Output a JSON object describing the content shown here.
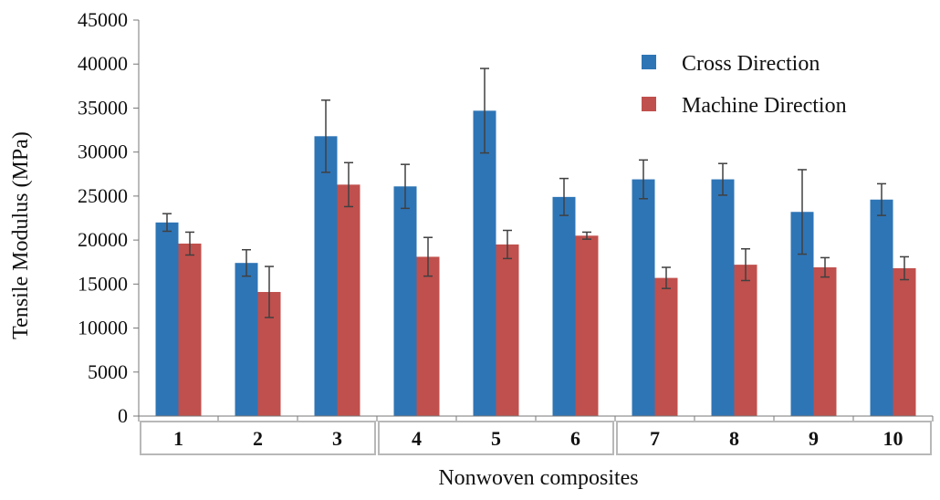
{
  "chart_data": {
    "type": "bar",
    "categories": [
      "1",
      "2",
      "3",
      "4",
      "5",
      "6",
      "7",
      "8",
      "9",
      "10"
    ],
    "groups": [
      [
        "1",
        "2",
        "3"
      ],
      [
        "4",
        "5",
        "6"
      ],
      [
        "7",
        "8",
        "9",
        "10"
      ]
    ],
    "series": [
      {
        "name": "Cross Direction",
        "color": "#2E75B6",
        "values": [
          22000,
          17400,
          31800,
          26100,
          34700,
          24900,
          26900,
          26900,
          23200,
          24600
        ],
        "errors": [
          1000,
          1500,
          4100,
          2500,
          4800,
          2100,
          2200,
          1800,
          4800,
          1800
        ]
      },
      {
        "name": "Machine Direction",
        "color": "#C0504D",
        "values": [
          19600,
          14100,
          26300,
          18100,
          19500,
          20500,
          15700,
          17200,
          16900,
          16800
        ],
        "errors": [
          1300,
          2900,
          2500,
          2200,
          1600,
          400,
          1200,
          1800,
          1100,
          1300
        ]
      }
    ],
    "xlabel": "Nonwoven composites",
    "ylabel": "Tensile Modulus (MPa)",
    "ylim": [
      0,
      45000
    ],
    "yticks": [
      "0",
      "5000",
      "10000",
      "15000",
      "20000",
      "25000",
      "30000",
      "35000",
      "40000",
      "45000"
    ],
    "grid": false,
    "legend": "top-right"
  }
}
